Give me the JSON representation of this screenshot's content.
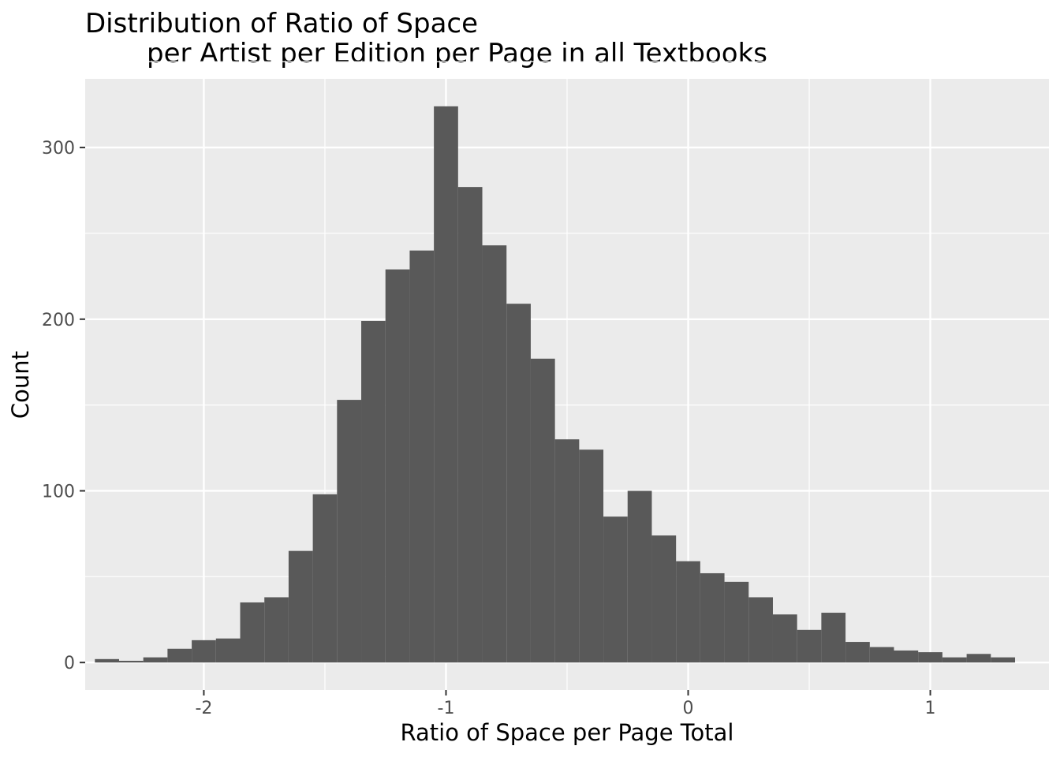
{
  "chart_data": {
    "type": "histogram",
    "title_line1": "Distribution of Ratio of Space",
    "title_line2": "per Artist per Edition per Page in all Textbooks",
    "xlabel": "Ratio of Space per Page Total",
    "ylabel": "Count",
    "x_ticks": [
      -2,
      -1,
      0,
      1
    ],
    "x_tick_labels": [
      "-2",
      "-1",
      "0",
      "1"
    ],
    "y_ticks": [
      0,
      100,
      200,
      300
    ],
    "y_tick_labels": [
      "0",
      "100",
      "200",
      "300"
    ],
    "xlim": [
      -2.49,
      1.49
    ],
    "ylim": [
      -16,
      340
    ],
    "grid": true,
    "bin_width": 0.1,
    "bins": [
      {
        "x0": -2.45,
        "x1": -2.35,
        "count": 2
      },
      {
        "x0": -2.35,
        "x1": -2.25,
        "count": 1
      },
      {
        "x0": -2.25,
        "x1": -2.15,
        "count": 3
      },
      {
        "x0": -2.15,
        "x1": -2.05,
        "count": 8
      },
      {
        "x0": -2.05,
        "x1": -1.95,
        "count": 13
      },
      {
        "x0": -1.95,
        "x1": -1.85,
        "count": 14
      },
      {
        "x0": -1.85,
        "x1": -1.75,
        "count": 35
      },
      {
        "x0": -1.75,
        "x1": -1.65,
        "count": 38
      },
      {
        "x0": -1.65,
        "x1": -1.55,
        "count": 65
      },
      {
        "x0": -1.55,
        "x1": -1.45,
        "count": 98
      },
      {
        "x0": -1.45,
        "x1": -1.35,
        "count": 153
      },
      {
        "x0": -1.35,
        "x1": -1.25,
        "count": 199
      },
      {
        "x0": -1.25,
        "x1": -1.15,
        "count": 229
      },
      {
        "x0": -1.15,
        "x1": -1.05,
        "count": 240
      },
      {
        "x0": -1.05,
        "x1": -0.95,
        "count": 324
      },
      {
        "x0": -0.95,
        "x1": -0.85,
        "count": 277
      },
      {
        "x0": -0.85,
        "x1": -0.75,
        "count": 243
      },
      {
        "x0": -0.75,
        "x1": -0.65,
        "count": 209
      },
      {
        "x0": -0.65,
        "x1": -0.55,
        "count": 177
      },
      {
        "x0": -0.55,
        "x1": -0.45,
        "count": 130
      },
      {
        "x0": -0.45,
        "x1": -0.35,
        "count": 124
      },
      {
        "x0": -0.35,
        "x1": -0.25,
        "count": 85
      },
      {
        "x0": -0.25,
        "x1": -0.15,
        "count": 100
      },
      {
        "x0": -0.15,
        "x1": -0.05,
        "count": 74
      },
      {
        "x0": -0.05,
        "x1": 0.05,
        "count": 59
      },
      {
        "x0": 0.05,
        "x1": 0.15,
        "count": 52
      },
      {
        "x0": 0.15,
        "x1": 0.25,
        "count": 47
      },
      {
        "x0": 0.25,
        "x1": 0.35,
        "count": 38
      },
      {
        "x0": 0.35,
        "x1": 0.45,
        "count": 28
      },
      {
        "x0": 0.45,
        "x1": 0.55,
        "count": 19
      },
      {
        "x0": 0.55,
        "x1": 0.65,
        "count": 29
      },
      {
        "x0": 0.65,
        "x1": 0.75,
        "count": 12
      },
      {
        "x0": 0.75,
        "x1": 0.85,
        "count": 9
      },
      {
        "x0": 0.85,
        "x1": 0.95,
        "count": 7
      },
      {
        "x0": 0.95,
        "x1": 1.05,
        "count": 6
      },
      {
        "x0": 1.05,
        "x1": 1.15,
        "count": 3
      },
      {
        "x0": 1.15,
        "x1": 1.25,
        "count": 5
      },
      {
        "x0": 1.25,
        "x1": 1.35,
        "count": 3
      }
    ],
    "colors": {
      "bar": "#595959",
      "panel": "#ebebeb",
      "grid": "#ffffff",
      "tick": "#333333"
    }
  }
}
